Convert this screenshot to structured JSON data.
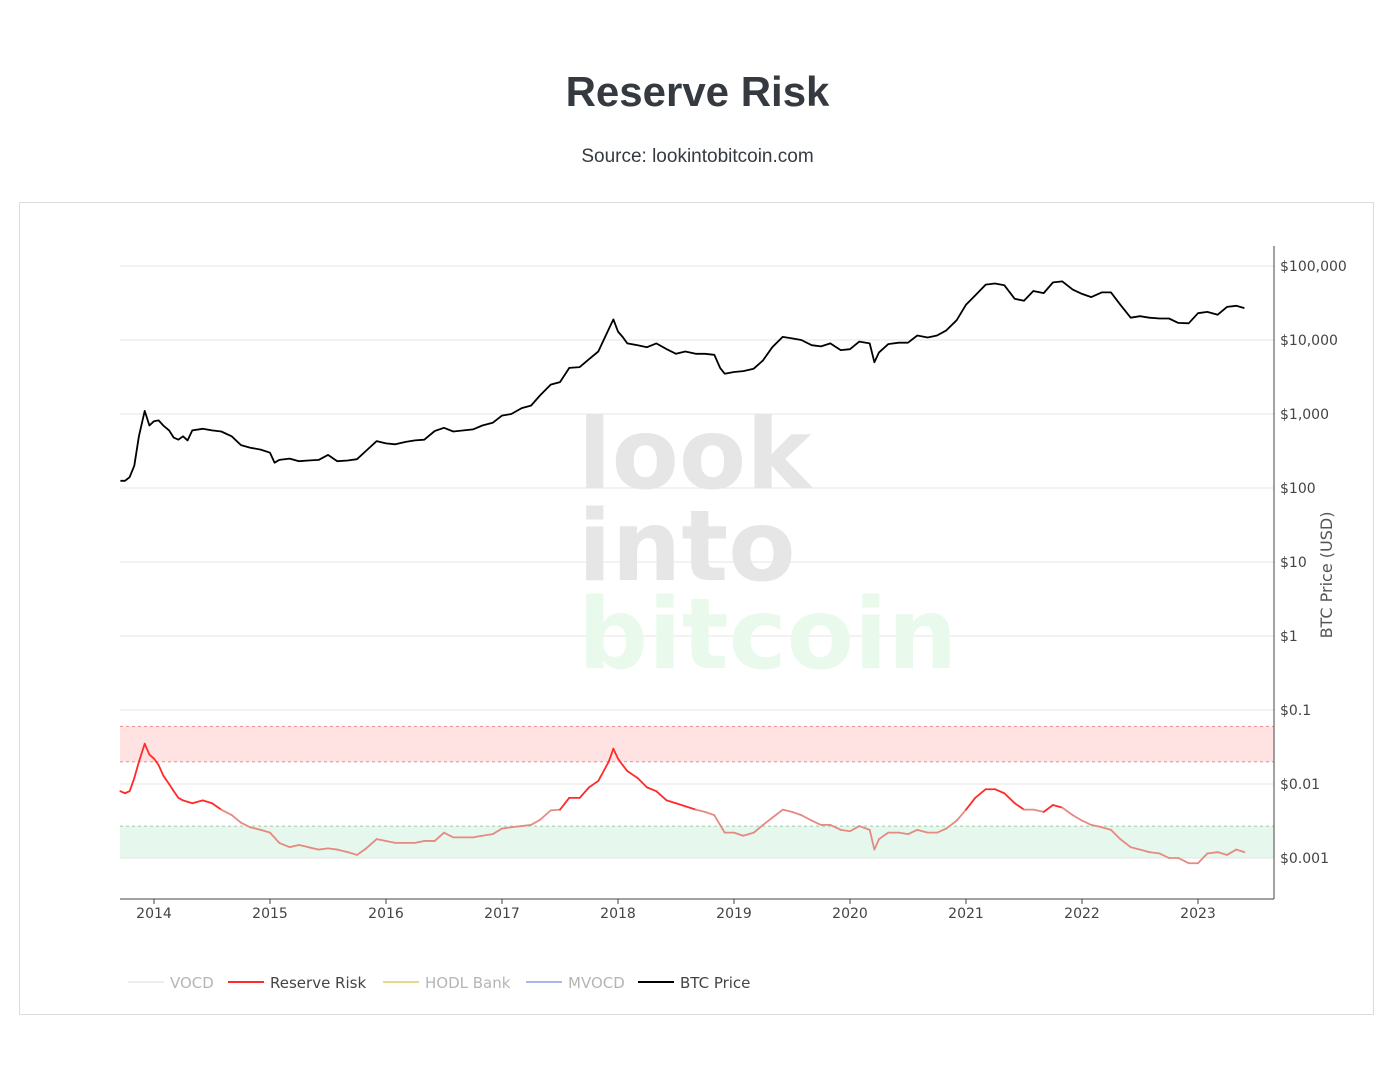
{
  "header": {
    "title": "Reserve Risk",
    "subtitle": "Source: lookintobitcoin.com"
  },
  "watermark": {
    "line1": "look",
    "line2": "into",
    "line3": "bitcoin"
  },
  "colors": {
    "btc_price": "#000000",
    "reserve_risk_high": "#ff2a2a",
    "reserve_risk_low": "#e58a80",
    "red_band": "#ffe3e3",
    "green_band": "#e6f7ee",
    "vocd": "#eeeeee",
    "hodl_bank": "#e8d98a",
    "mvocd": "#a8b8e8"
  },
  "chart_data": {
    "type": "line",
    "y_axis": {
      "title": "BTC Price (USD)",
      "scale": "log",
      "range": [
        0.0003,
        200000
      ],
      "ticks": [
        100000,
        10000,
        1000,
        100,
        10,
        1,
        0.1,
        0.01,
        0.001
      ],
      "tick_labels": [
        "$100,000",
        "$10,000",
        "$1,000",
        "$100",
        "$10",
        "$1",
        "$0.1",
        "$0.01",
        "$0.001"
      ],
      "position": "right",
      "grid": true
    },
    "x_axis": {
      "range": [
        2013.71,
        2023.65
      ],
      "ticks": [
        2014,
        2015,
        2016,
        2017,
        2018,
        2019,
        2020,
        2021,
        2022,
        2023
      ],
      "tick_labels": [
        "2014",
        "2015",
        "2016",
        "2017",
        "2018",
        "2019",
        "2020",
        "2021",
        "2022",
        "2023"
      ]
    },
    "bands": [
      {
        "name": "red-zone",
        "y0": 0.02,
        "y1": 0.06
      },
      {
        "name": "green-zone",
        "y0": 0.001,
        "y1": 0.0027
      }
    ],
    "legend": {
      "position": "bottom-left",
      "items": [
        {
          "label": "VOCD",
          "active": false
        },
        {
          "label": "Reserve Risk",
          "active": true
        },
        {
          "label": "HODL Bank",
          "active": false
        },
        {
          "label": "MVOCD",
          "active": false
        },
        {
          "label": "BTC Price",
          "active": true
        }
      ]
    },
    "series": [
      {
        "name": "BTC Price",
        "x": [
          2013.71,
          2013.75,
          2013.79,
          2013.83,
          2013.87,
          2013.92,
          2013.96,
          2014.0,
          2014.04,
          2014.08,
          2014.13,
          2014.17,
          2014.21,
          2014.25,
          2014.29,
          2014.33,
          2014.42,
          2014.5,
          2014.58,
          2014.67,
          2014.75,
          2014.83,
          2014.92,
          2015.0,
          2015.04,
          2015.08,
          2015.17,
          2015.25,
          2015.33,
          2015.42,
          2015.5,
          2015.58,
          2015.67,
          2015.75,
          2015.83,
          2015.92,
          2016.0,
          2016.08,
          2016.17,
          2016.25,
          2016.33,
          2016.42,
          2016.5,
          2016.58,
          2016.67,
          2016.75,
          2016.83,
          2016.92,
          2017.0,
          2017.08,
          2017.17,
          2017.25,
          2017.33,
          2017.42,
          2017.5,
          2017.58,
          2017.67,
          2017.75,
          2017.83,
          2017.92,
          2017.96,
          2018.0,
          2018.04,
          2018.08,
          2018.17,
          2018.25,
          2018.33,
          2018.42,
          2018.5,
          2018.58,
          2018.67,
          2018.75,
          2018.83,
          2018.88,
          2018.92,
          2019.0,
          2019.08,
          2019.17,
          2019.25,
          2019.33,
          2019.42,
          2019.5,
          2019.58,
          2019.67,
          2019.75,
          2019.83,
          2019.92,
          2020.0,
          2020.08,
          2020.17,
          2020.21,
          2020.25,
          2020.33,
          2020.42,
          2020.5,
          2020.58,
          2020.67,
          2020.75,
          2020.83,
          2020.92,
          2021.0,
          2021.08,
          2021.17,
          2021.25,
          2021.33,
          2021.42,
          2021.5,
          2021.58,
          2021.67,
          2021.75,
          2021.83,
          2021.92,
          2022.0,
          2022.08,
          2022.17,
          2022.25,
          2022.33,
          2022.42,
          2022.5,
          2022.58,
          2022.67,
          2022.75,
          2022.83,
          2022.92,
          2023.0,
          2023.08,
          2023.17,
          2023.25,
          2023.33,
          2023.4
        ],
        "values": [
          125,
          125,
          140,
          200,
          500,
          1100,
          700,
          800,
          820,
          700,
          600,
          480,
          450,
          500,
          440,
          600,
          630,
          600,
          580,
          500,
          380,
          350,
          330,
          300,
          220,
          240,
          250,
          230,
          235,
          240,
          280,
          230,
          235,
          245,
          320,
          430,
          400,
          390,
          420,
          440,
          450,
          590,
          650,
          580,
          600,
          620,
          700,
          760,
          950,
          1000,
          1200,
          1300,
          1800,
          2500,
          2700,
          4200,
          4300,
          5500,
          7000,
          14000,
          19000,
          13000,
          11000,
          9000,
          8500,
          8000,
          9000,
          7500,
          6500,
          7000,
          6500,
          6500,
          6300,
          4200,
          3500,
          3700,
          3800,
          4100,
          5300,
          8000,
          11000,
          10500,
          10000,
          8500,
          8200,
          9000,
          7300,
          7500,
          9500,
          9000,
          5000,
          6800,
          8800,
          9200,
          9200,
          11500,
          10800,
          11500,
          13500,
          18500,
          30000,
          40000,
          56000,
          58000,
          55000,
          36000,
          34000,
          46000,
          43000,
          60000,
          62000,
          48000,
          42000,
          38000,
          44000,
          44000,
          30000,
          20000,
          21000,
          20000,
          19500,
          19500,
          17000,
          16800,
          23000,
          24000,
          22000,
          28000,
          29000,
          27000
        ]
      },
      {
        "name": "Reserve Risk",
        "x": [
          2013.71,
          2013.75,
          2013.79,
          2013.83,
          2013.87,
          2013.92,
          2013.96,
          2014.0,
          2014.04,
          2014.08,
          2014.13,
          2014.17,
          2014.21,
          2014.25,
          2014.33,
          2014.42,
          2014.5,
          2014.58,
          2014.67,
          2014.75,
          2014.83,
          2014.92,
          2015.0,
          2015.08,
          2015.17,
          2015.25,
          2015.33,
          2015.42,
          2015.5,
          2015.58,
          2015.67,
          2015.75,
          2015.83,
          2015.92,
          2016.0,
          2016.08,
          2016.17,
          2016.25,
          2016.33,
          2016.42,
          2016.5,
          2016.58,
          2016.67,
          2016.75,
          2016.83,
          2016.92,
          2017.0,
          2017.08,
          2017.17,
          2017.25,
          2017.33,
          2017.42,
          2017.5,
          2017.58,
          2017.67,
          2017.75,
          2017.83,
          2017.92,
          2017.96,
          2018.0,
          2018.04,
          2018.08,
          2018.17,
          2018.25,
          2018.33,
          2018.42,
          2018.5,
          2018.58,
          2018.67,
          2018.75,
          2018.83,
          2018.88,
          2018.92,
          2019.0,
          2019.08,
          2019.17,
          2019.25,
          2019.33,
          2019.42,
          2019.5,
          2019.58,
          2019.67,
          2019.75,
          2019.83,
          2019.92,
          2020.0,
          2020.08,
          2020.17,
          2020.21,
          2020.25,
          2020.33,
          2020.42,
          2020.5,
          2020.58,
          2020.67,
          2020.75,
          2020.83,
          2020.92,
          2021.0,
          2021.08,
          2021.17,
          2021.25,
          2021.33,
          2021.42,
          2021.5,
          2021.58,
          2021.67,
          2021.75,
          2021.83,
          2021.92,
          2022.0,
          2022.08,
          2022.17,
          2022.25,
          2022.33,
          2022.42,
          2022.5,
          2022.58,
          2022.67,
          2022.75,
          2022.83,
          2022.92,
          2023.0,
          2023.08,
          2023.17,
          2023.25,
          2023.33,
          2023.4
        ],
        "values": [
          0.008,
          0.0075,
          0.008,
          0.012,
          0.02,
          0.035,
          0.025,
          0.022,
          0.018,
          0.013,
          0.01,
          0.008,
          0.0065,
          0.006,
          0.0055,
          0.006,
          0.0055,
          0.0045,
          0.0038,
          0.003,
          0.0026,
          0.0024,
          0.0022,
          0.0016,
          0.0014,
          0.0015,
          0.0014,
          0.0013,
          0.00135,
          0.0013,
          0.0012,
          0.0011,
          0.00135,
          0.0018,
          0.0017,
          0.0016,
          0.0016,
          0.0016,
          0.0017,
          0.0017,
          0.0022,
          0.0019,
          0.0019,
          0.0019,
          0.002,
          0.0021,
          0.0025,
          0.0026,
          0.0027,
          0.0028,
          0.0033,
          0.0044,
          0.0045,
          0.0065,
          0.0065,
          0.009,
          0.011,
          0.02,
          0.03,
          0.022,
          0.018,
          0.015,
          0.012,
          0.009,
          0.008,
          0.006,
          0.0055,
          0.005,
          0.0045,
          0.0042,
          0.0038,
          0.0028,
          0.0022,
          0.0022,
          0.002,
          0.0022,
          0.0028,
          0.0035,
          0.0045,
          0.0042,
          0.0038,
          0.0032,
          0.0028,
          0.0028,
          0.0024,
          0.0023,
          0.0027,
          0.0024,
          0.0013,
          0.0018,
          0.0022,
          0.0022,
          0.0021,
          0.0024,
          0.0022,
          0.0022,
          0.0025,
          0.0032,
          0.0045,
          0.0065,
          0.0085,
          0.0085,
          0.0075,
          0.0055,
          0.0045,
          0.0045,
          0.0042,
          0.0052,
          0.0048,
          0.0038,
          0.0032,
          0.0028,
          0.0026,
          0.0024,
          0.0018,
          0.0014,
          0.0013,
          0.0012,
          0.00115,
          0.001,
          0.001,
          0.00085,
          0.00085,
          0.00115,
          0.0012,
          0.0011,
          0.0013,
          0.0012
        ]
      }
    ]
  }
}
